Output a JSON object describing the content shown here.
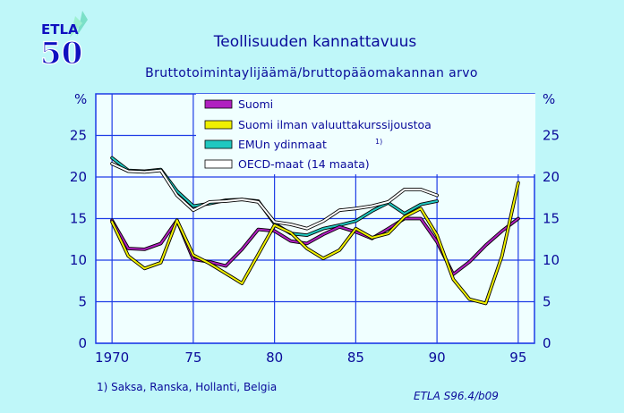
{
  "logo": {
    "top": "ETLA",
    "bottom": "50"
  },
  "colors": {
    "background": "#BFF7F9",
    "plot_background": "#F0FFFF",
    "grid": "#1E3CE6",
    "text": "#0A0A9A",
    "suomi": "#B020C0",
    "suomi_ilman": "#F0F000",
    "emu": "#20C8C0",
    "oecd": "#FFFFFF"
  },
  "chart_data": {
    "type": "line",
    "title": "Teollisuuden kannattavuus",
    "subtitle": "Bruttotoimintaylijäämä/bruttopääomakannan arvo",
    "ylabel_left": "%",
    "ylabel_right": "%",
    "xlim": [
      1969,
      1996
    ],
    "ylim": [
      0,
      30
    ],
    "xticks": [
      1970,
      1975,
      1980,
      1985,
      1990,
      1995
    ],
    "xtick_labels": [
      "1970",
      "75",
      "80",
      "85",
      "90",
      "95"
    ],
    "yticks": [
      0,
      5,
      10,
      15,
      20,
      25
    ],
    "grid": true,
    "legend_position": "top-center",
    "series": [
      {
        "name": "Suomi",
        "color_key": "suomi",
        "x": [
          1970,
          1971,
          1972,
          1973,
          1974,
          1975,
          1976,
          1977,
          1978,
          1979,
          1980,
          1981,
          1982,
          1983,
          1984,
          1985,
          1986,
          1987,
          1988,
          1989,
          1990,
          1991,
          1992,
          1993,
          1994,
          1995
        ],
        "values": [
          14.8,
          11.4,
          11.3,
          12.0,
          14.8,
          10.1,
          9.8,
          9.3,
          11.3,
          13.7,
          13.5,
          12.3,
          12.0,
          13.1,
          14.0,
          13.4,
          12.6,
          13.8,
          15.0,
          15.0,
          12.2,
          8.3,
          9.8,
          11.8,
          13.5,
          15.0
        ]
      },
      {
        "name": "Suomi ilman valuuttakurssijoustoa",
        "color_key": "suomi_ilman",
        "x": [
          1970,
          1971,
          1972,
          1973,
          1974,
          1975,
          1976,
          1977,
          1978,
          1979,
          1980,
          1981,
          1982,
          1983,
          1984,
          1985,
          1986,
          1987,
          1988,
          1989,
          1990,
          1991,
          1992,
          1993,
          1994,
          1995
        ],
        "values": [
          14.6,
          10.5,
          9.0,
          9.7,
          14.8,
          10.6,
          9.6,
          8.4,
          7.2,
          10.7,
          14.2,
          13.3,
          11.4,
          10.2,
          11.2,
          13.8,
          12.7,
          13.2,
          15.2,
          16.2,
          13.0,
          7.7,
          5.3,
          4.8,
          10.5,
          19.3
        ]
      },
      {
        "name": "EMUn ydinmaat",
        "footnote_ref": "1)",
        "color_key": "emu",
        "x": [
          1970,
          1971,
          1972,
          1973,
          1974,
          1975,
          1976,
          1977,
          1978,
          1979,
          1980,
          1981,
          1982,
          1983,
          1984,
          1985,
          1986,
          1987,
          1988,
          1989,
          1990
        ],
        "values": [
          22.3,
          20.8,
          20.7,
          20.9,
          18.3,
          16.5,
          16.8,
          17.2,
          17.3,
          17.1,
          14.4,
          13.2,
          13.0,
          13.8,
          14.2,
          14.7,
          15.9,
          16.9,
          15.6,
          16.7,
          17.1
        ]
      },
      {
        "name": "OECD-maat (14 maata)",
        "color_key": "oecd",
        "x": [
          1970,
          1971,
          1972,
          1973,
          1974,
          1975,
          1976,
          1977,
          1978,
          1979,
          1980,
          1981,
          1982,
          1983,
          1984,
          1985,
          1986,
          1987,
          1988,
          1989,
          1990
        ],
        "values": [
          21.6,
          20.7,
          20.6,
          20.8,
          17.8,
          16.0,
          17.0,
          17.1,
          17.3,
          17.0,
          14.6,
          14.3,
          13.8,
          14.7,
          16.0,
          16.2,
          16.5,
          17.0,
          18.5,
          18.5,
          17.8
        ]
      }
    ],
    "footnote": "1)  Saksa, Ranska, Hollanti, Belgia",
    "source": "ETLA S96.4/b09"
  }
}
